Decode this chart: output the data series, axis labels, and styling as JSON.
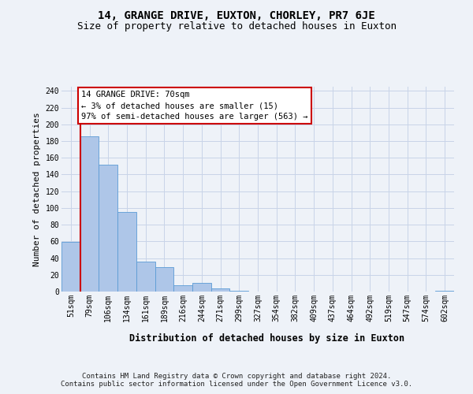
{
  "title": "14, GRANGE DRIVE, EUXTON, CHORLEY, PR7 6JE",
  "subtitle": "Size of property relative to detached houses in Euxton",
  "xlabel": "Distribution of detached houses by size in Euxton",
  "ylabel": "Number of detached properties",
  "categories": [
    "51sqm",
    "79sqm",
    "106sqm",
    "134sqm",
    "161sqm",
    "189sqm",
    "216sqm",
    "244sqm",
    "271sqm",
    "299sqm",
    "327sqm",
    "354sqm",
    "382sqm",
    "409sqm",
    "437sqm",
    "464sqm",
    "492sqm",
    "519sqm",
    "547sqm",
    "574sqm",
    "602sqm"
  ],
  "values": [
    59,
    186,
    152,
    95,
    36,
    29,
    8,
    10,
    4,
    1,
    0,
    0,
    0,
    0,
    0,
    0,
    0,
    0,
    0,
    0,
    1
  ],
  "bar_color": "#aec6e8",
  "bar_edge_color": "#5b9bd5",
  "annotation_box_text": "14 GRANGE DRIVE: 70sqm\n← 3% of detached houses are smaller (15)\n97% of semi-detached houses are larger (563) →",
  "annotation_box_color": "#ffffff",
  "annotation_box_edge_color": "#cc0000",
  "marker_line_color": "#cc0000",
  "ylim": [
    0,
    245
  ],
  "yticks": [
    0,
    20,
    40,
    60,
    80,
    100,
    120,
    140,
    160,
    180,
    200,
    220,
    240
  ],
  "grid_color": "#c8d4e8",
  "footer_text": "Contains HM Land Registry data © Crown copyright and database right 2024.\nContains public sector information licensed under the Open Government Licence v3.0.",
  "background_color": "#eef2f8",
  "title_fontsize": 10,
  "subtitle_fontsize": 9,
  "xlabel_fontsize": 8.5,
  "ylabel_fontsize": 8,
  "tick_fontsize": 7,
  "annotation_fontsize": 7.5,
  "footer_fontsize": 6.5
}
